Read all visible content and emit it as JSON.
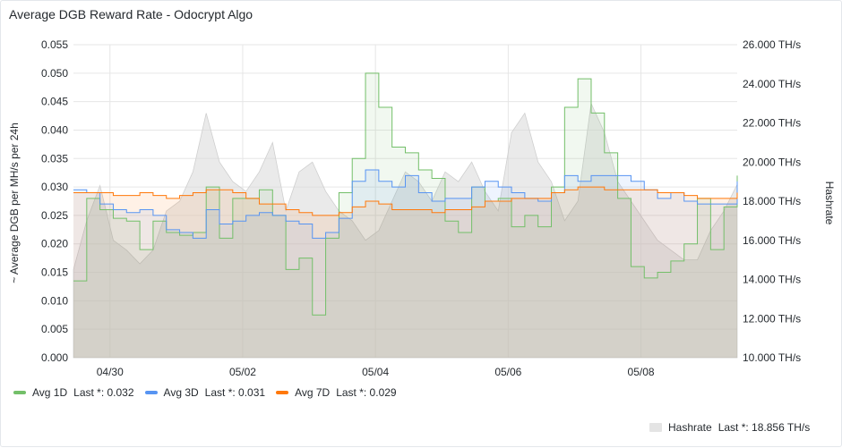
{
  "panel": {
    "title": "Average DGB Reward Rate - Odocrypt Algo"
  },
  "colors": {
    "avg1d": "#73bf69",
    "avg3d": "#5794f2",
    "avg7d": "#ff780a",
    "hashrate": "#c8c8c8",
    "grid": "#e6e6e6"
  },
  "legend": [
    {
      "name": "Avg 1D",
      "stat": "Last *: 0.032",
      "color": "#73bf69"
    },
    {
      "name": "Avg 3D",
      "stat": "Last *: 0.031",
      "color": "#5794f2"
    },
    {
      "name": "Avg 7D",
      "stat": "Last *: 0.029",
      "color": "#ff780a"
    }
  ],
  "legend_hashrate": {
    "name": "Hashrate",
    "stat": "Last *: 18.856 TH/s",
    "color": "#e4e4e4"
  },
  "chart_data": {
    "type": "line",
    "x_range": [
      "04/29 11:00",
      "05/09 06:00"
    ],
    "x_ticks": [
      "04/30",
      "05/02",
      "05/04",
      "05/06",
      "05/08"
    ],
    "left_axis": {
      "label": "~ Average DGB per MH/s per 24h",
      "ylim": [
        0,
        0.055
      ],
      "ticks": [
        "0.000",
        "0.005",
        "0.010",
        "0.015",
        "0.020",
        "0.025",
        "0.030",
        "0.035",
        "0.040",
        "0.045",
        "0.050",
        "0.055"
      ]
    },
    "right_axis": {
      "label": "Hashrate",
      "ylim": [
        10,
        26
      ],
      "ticks": [
        "10.000 TH/s",
        "12.000 TH/s",
        "14.000 TH/s",
        "16.000 TH/s",
        "18.000 TH/s",
        "20.000 TH/s",
        "22.000 TH/s",
        "24.000 TH/s",
        "26.000 TH/s"
      ]
    },
    "grid": true,
    "legend_position": "bottom-left",
    "x_days": [
      0,
      0.2,
      0.4,
      0.6,
      0.8,
      1,
      1.2,
      1.4,
      1.6,
      1.8,
      2,
      2.2,
      2.4,
      2.6,
      2.8,
      3,
      3.2,
      3.4,
      3.6,
      3.8,
      4,
      4.2,
      4.4,
      4.6,
      4.8,
      5,
      5.2,
      5.4,
      5.6,
      5.8,
      6,
      6.2,
      6.4,
      6.6,
      6.8,
      7,
      7.2,
      7.4,
      7.6,
      7.8,
      8,
      8.2,
      8.4,
      8.6,
      8.8,
      9,
      9.2,
      9.4,
      9.6,
      9.8,
      10
    ],
    "series": [
      {
        "name": "Avg 1D",
        "axis": "left",
        "color": "#73bf69",
        "values": [
          0.0135,
          0.028,
          0.026,
          0.0245,
          0.024,
          0.019,
          0.024,
          0.022,
          0.0215,
          0.022,
          0.03,
          0.021,
          0.028,
          0.028,
          0.0295,
          0.025,
          0.0155,
          0.0175,
          0.0075,
          0.021,
          0.029,
          0.035,
          0.05,
          0.044,
          0.037,
          0.036,
          0.033,
          0.0315,
          0.024,
          0.022,
          0.03,
          0.0275,
          0.028,
          0.023,
          0.025,
          0.023,
          0.03,
          0.044,
          0.049,
          0.043,
          0.036,
          0.028,
          0.016,
          0.014,
          0.015,
          0.017,
          0.02,
          0.028,
          0.019,
          0.0265,
          0.032
        ]
      },
      {
        "name": "Avg 3D",
        "axis": "left",
        "color": "#5794f2",
        "values": [
          0.0295,
          0.029,
          0.027,
          0.026,
          0.0255,
          0.026,
          0.025,
          0.0225,
          0.022,
          0.021,
          0.026,
          0.0235,
          0.024,
          0.025,
          0.0255,
          0.025,
          0.024,
          0.0235,
          0.021,
          0.022,
          0.0245,
          0.031,
          0.033,
          0.031,
          0.03,
          0.032,
          0.029,
          0.0275,
          0.028,
          0.028,
          0.03,
          0.031,
          0.03,
          0.029,
          0.028,
          0.0275,
          0.029,
          0.032,
          0.031,
          0.032,
          0.032,
          0.032,
          0.031,
          0.0295,
          0.028,
          0.029,
          0.0275,
          0.027,
          0.027,
          0.027,
          0.031
        ]
      },
      {
        "name": "Avg 7D",
        "axis": "left",
        "color": "#ff780a",
        "values": [
          0.029,
          0.029,
          0.029,
          0.0285,
          0.0285,
          0.029,
          0.0285,
          0.028,
          0.0285,
          0.029,
          0.0295,
          0.0295,
          0.029,
          0.028,
          0.027,
          0.027,
          0.026,
          0.0255,
          0.025,
          0.025,
          0.0255,
          0.0265,
          0.0275,
          0.027,
          0.026,
          0.026,
          0.026,
          0.0255,
          0.026,
          0.026,
          0.0265,
          0.0275,
          0.0275,
          0.028,
          0.028,
          0.028,
          0.029,
          0.0295,
          0.03,
          0.03,
          0.0295,
          0.0295,
          0.0295,
          0.0295,
          0.029,
          0.029,
          0.0285,
          0.028,
          0.028,
          0.028,
          0.029
        ]
      },
      {
        "name": "Hashrate",
        "axis": "right",
        "color": "#c8c8c8",
        "values": [
          14.5,
          17.0,
          18.8,
          16.0,
          15.5,
          14.8,
          15.5,
          17.5,
          18.0,
          19.5,
          22.5,
          20.0,
          19.0,
          18.5,
          19.5,
          21.0,
          17.5,
          19.5,
          20.0,
          18.5,
          17.5,
          17.0,
          16.0,
          16.5,
          18.0,
          19.5,
          19.0,
          18.0,
          19.5,
          19.0,
          20.0,
          18.5,
          17.5,
          21.5,
          22.5,
          20.0,
          19.0,
          17.0,
          18.0,
          23.0,
          21.5,
          19.0,
          18.0,
          17.0,
          16.0,
          15.5,
          15.0,
          15.0,
          16.5,
          17.5,
          18.856
        ]
      }
    ]
  }
}
